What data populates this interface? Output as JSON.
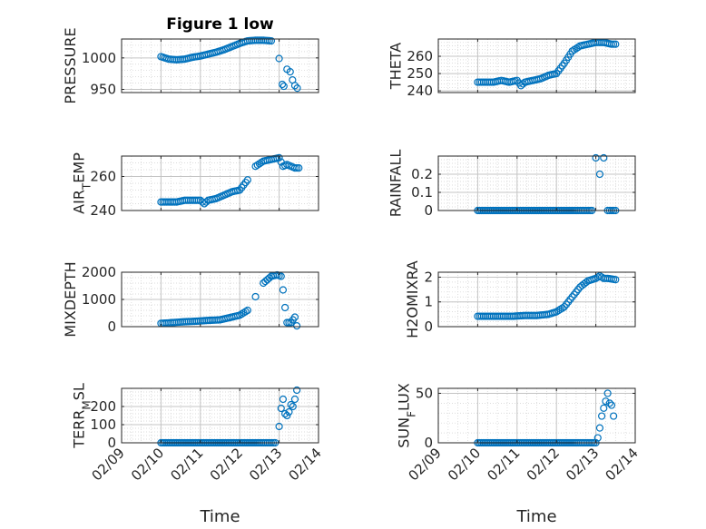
{
  "figure": {
    "title": "Figure 1 low",
    "xlabel": "Time",
    "marker_color": "#0072BD"
  },
  "chart_data": [
    {
      "type": "scatter",
      "title": "Figure 1 low",
      "ylabel": "PRESSURE",
      "xlim": [
        "02/09",
        "02/14"
      ],
      "ylim": [
        945,
        1030
      ],
      "yticks": [
        "950",
        "1000"
      ],
      "xticks": [],
      "grid": "on (major + minor dotted)",
      "series": [
        {
          "x": [
            10.0,
            10.2,
            10.4,
            10.6,
            10.8,
            11.0,
            11.2,
            11.4,
            11.6,
            11.8,
            12.0,
            12.2,
            12.4,
            12.6,
            12.8,
            13.0,
            13.08,
            13.12,
            13.2,
            13.28,
            13.34,
            13.4,
            13.46
          ],
          "y": [
            1002,
            998,
            997,
            998,
            1001,
            1003,
            1006,
            1009,
            1013,
            1018,
            1023,
            1027,
            1028,
            1028,
            1027,
            999,
            958,
            955,
            982,
            978,
            965,
            956,
            952
          ]
        }
      ]
    },
    {
      "type": "scatter",
      "ylabel": "THETA",
      "xlim": [
        "02/09",
        "02/14"
      ],
      "ylim": [
        239,
        270
      ],
      "yticks": [
        "240",
        "250",
        "260"
      ],
      "xticks": [],
      "grid": "on (major + minor dotted)",
      "series": [
        {
          "x": [
            10.0,
            10.2,
            10.4,
            10.6,
            10.8,
            11.0,
            11.1,
            11.2,
            11.4,
            11.6,
            11.8,
            12.0,
            12.2,
            12.4,
            12.6,
            12.8,
            13.0,
            13.2,
            13.4,
            13.5
          ],
          "y": [
            245,
            245,
            245,
            246,
            245,
            246,
            243,
            245,
            246,
            247,
            249,
            250,
            256,
            263,
            266,
            267,
            268,
            268,
            267,
            267
          ]
        }
      ]
    },
    {
      "type": "scatter",
      "ylabel": "AIR_TEMP",
      "xlim": [
        "02/09",
        "02/14"
      ],
      "ylim": [
        240,
        272
      ],
      "yticks": [
        "240",
        "260"
      ],
      "xticks": [],
      "grid": "on (major + minor dotted)",
      "series": [
        {
          "x": [
            10.0,
            10.2,
            10.4,
            10.6,
            10.8,
            11.0,
            11.1,
            11.2,
            11.4,
            11.6,
            11.8,
            12.0,
            12.2,
            12.4,
            12.6,
            12.8,
            13.0,
            13.1,
            13.2,
            13.3,
            13.4,
            13.5
          ],
          "y": [
            245,
            245,
            245,
            246,
            246,
            246,
            244,
            246,
            247,
            249,
            251,
            252,
            258,
            266,
            269,
            270,
            271,
            266,
            267,
            266,
            265,
            265
          ]
        }
      ]
    },
    {
      "type": "scatter",
      "ylabel": "RAINFALL",
      "xlim": [
        "02/09",
        "02/14"
      ],
      "ylim": [
        0,
        0.3
      ],
      "yticks": [
        "0",
        "0.1",
        "0.2"
      ],
      "xticks": [],
      "grid": "on (major + minor dotted)",
      "series": [
        {
          "x": [
            10.0,
            10.5,
            11.0,
            11.5,
            12.0,
            12.5,
            12.9,
            13.0,
            13.1,
            13.2,
            13.3,
            13.4,
            13.5
          ],
          "y": [
            0,
            0,
            0,
            0,
            0,
            0,
            0,
            0.29,
            0.2,
            0.29,
            0,
            0,
            0
          ]
        }
      ]
    },
    {
      "type": "scatter",
      "ylabel": "MIXDEPTH",
      "xlim": [
        "02/09",
        "02/14"
      ],
      "ylim": [
        0,
        2000
      ],
      "yticks": [
        "0",
        "1000",
        "2000"
      ],
      "xticks": [],
      "grid": "on (major + minor dotted)",
      "series": [
        {
          "x": [
            10.0,
            10.3,
            10.6,
            10.9,
            11.2,
            11.5,
            11.8,
            12.0,
            12.2,
            12.4,
            12.6,
            12.8,
            12.95,
            13.05,
            13.1,
            13.15,
            13.2,
            13.3,
            13.4,
            13.45
          ],
          "y": [
            120,
            150,
            180,
            200,
            230,
            250,
            350,
            420,
            600,
            1100,
            1600,
            1850,
            1900,
            1850,
            1350,
            700,
            150,
            150,
            350,
            30
          ]
        }
      ]
    },
    {
      "type": "scatter",
      "ylabel": "H2OMIXRA",
      "xlim": [
        "02/09",
        "02/14"
      ],
      "ylim": [
        0,
        2.2
      ],
      "yticks": [
        "0",
        "1",
        "2"
      ],
      "xticks": [],
      "grid": "on (major + minor dotted)",
      "series": [
        {
          "x": [
            10.0,
            10.3,
            10.6,
            10.9,
            11.2,
            11.5,
            11.8,
            12.0,
            12.2,
            12.4,
            12.6,
            12.8,
            13.0,
            13.1,
            13.2,
            13.3,
            13.5
          ],
          "y": [
            0.42,
            0.42,
            0.42,
            0.42,
            0.45,
            0.45,
            0.5,
            0.6,
            0.8,
            1.2,
            1.6,
            1.85,
            1.95,
            2.05,
            1.95,
            1.95,
            1.9
          ]
        }
      ]
    },
    {
      "type": "scatter",
      "ylabel": "TERR_MSL",
      "xlim": [
        "02/09",
        "02/14"
      ],
      "ylim": [
        0,
        300
      ],
      "yticks": [
        "0",
        "100",
        "200"
      ],
      "xticks": [
        "02/09",
        "02/10",
        "02/11",
        "02/12",
        "02/13",
        "02/14"
      ],
      "xlabel": "Time",
      "grid": "on (major + minor dotted)",
      "series": [
        {
          "x": [
            10.0,
            10.5,
            11.0,
            11.5,
            12.0,
            12.5,
            12.9,
            13.0,
            13.05,
            13.1,
            13.15,
            13.2,
            13.25,
            13.3,
            13.35,
            13.4,
            13.45
          ],
          "y": [
            0,
            0,
            0,
            0,
            0,
            0,
            0,
            90,
            190,
            240,
            160,
            150,
            170,
            210,
            200,
            240,
            290
          ]
        }
      ]
    },
    {
      "type": "scatter",
      "ylabel": "SUN_FLUX",
      "xlim": [
        "02/09",
        "02/14"
      ],
      "ylim": [
        0,
        55
      ],
      "yticks": [
        "0",
        "50"
      ],
      "xticks": [
        "02/09",
        "02/10",
        "02/11",
        "02/12",
        "02/13",
        "02/14"
      ],
      "xlabel": "Time",
      "grid": "on (major + minor dotted)",
      "series": [
        {
          "x": [
            10.0,
            10.5,
            11.0,
            11.5,
            12.0,
            12.5,
            12.9,
            13.0,
            13.05,
            13.1,
            13.15,
            13.2,
            13.25,
            13.3,
            13.35,
            13.4,
            13.45
          ],
          "y": [
            0,
            0,
            0,
            0,
            0,
            0,
            0,
            0,
            5,
            15,
            27,
            35,
            42,
            50,
            40,
            38,
            27
          ]
        }
      ]
    }
  ]
}
